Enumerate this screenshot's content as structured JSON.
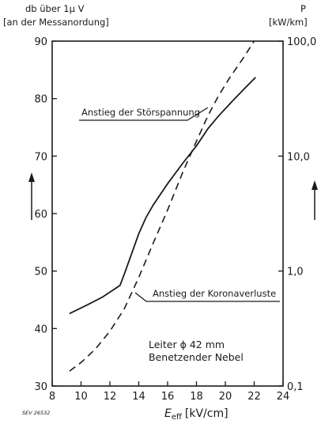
{
  "chart_data": {
    "type": "line",
    "x_axis": {
      "label": "E",
      "label_sub": "eff",
      "label_unit": "[kV/cm]",
      "range": [
        8,
        24
      ],
      "ticks": [
        8,
        10,
        12,
        14,
        16,
        18,
        20,
        22,
        24
      ]
    },
    "y_left": {
      "label_line1": "db über 1µ V",
      "label_line2": "[an der Messanordung]",
      "range": [
        30,
        90
      ],
      "ticks": [
        30,
        40,
        50,
        60,
        70,
        80,
        90
      ]
    },
    "y_right": {
      "label_line1": "P",
      "label_line2": "[kW/km]",
      "scale": "log",
      "range": [
        0.1,
        100
      ],
      "ticks": [
        0.1,
        1,
        10,
        100
      ],
      "tick_labels": [
        "0,1",
        "1,0",
        "10,0",
        "100,0"
      ]
    },
    "series": [
      {
        "style": "solid",
        "axis": "left",
        "x": [
          9.2,
          10.5,
          11.5,
          12.7,
          13.0,
          13.5,
          14.0,
          14.5,
          15.0,
          16.0,
          17.0,
          18.0,
          18.8,
          19.5,
          20.5,
          21.5,
          22.1
        ],
        "y": [
          42.6,
          44.2,
          45.5,
          47.5,
          49.5,
          53.0,
          56.5,
          59.3,
          61.5,
          65.2,
          68.6,
          71.8,
          74.8,
          76.9,
          79.6,
          82.2,
          83.7
        ]
      },
      {
        "style": "dashed",
        "axis": "right",
        "x": [
          9.2,
          10.0,
          11.0,
          12.0,
          13.0,
          14.0,
          15.0,
          16.0,
          17.0,
          18.0,
          18.8,
          19.5,
          20.3,
          21.2,
          22.0
        ],
        "y": [
          0.135,
          0.16,
          0.21,
          0.3,
          0.47,
          0.88,
          1.75,
          3.4,
          7.0,
          13.5,
          22.5,
          33.0,
          48.0,
          70.0,
          100.0
        ]
      }
    ],
    "annotations": {
      "stoerspannung": "Anstieg der Störspannung",
      "koronaverluste": "Anstieg der Koronaverluste",
      "note_line1": "Leiter ϕ 42 mm",
      "note_line2": "Benetzender Nebel"
    },
    "reference": "SEV 26532",
    "grid": false
  }
}
